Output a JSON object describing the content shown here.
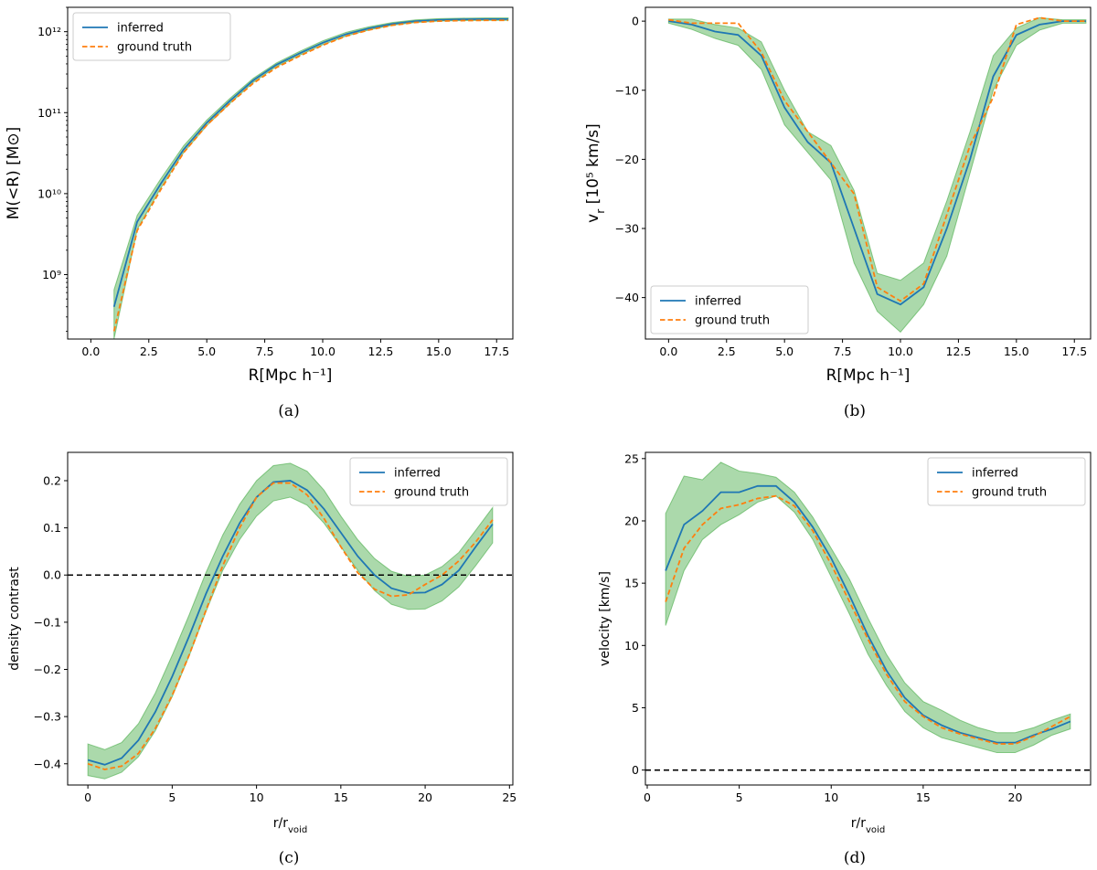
{
  "colors": {
    "inferred": "#1f77b4",
    "ground_truth": "#ff7f0e",
    "band": "#2ca02c"
  },
  "legend": {
    "inferred": "inferred",
    "ground_truth": "ground truth"
  },
  "chart_data": [
    {
      "id": "a",
      "caption": "(a)",
      "type": "line",
      "yscale": "log",
      "xlabel": "R[Mpc h⁻¹]",
      "ylabel": "M(<R) [M⊙]",
      "xlim": [
        -1,
        18.2
      ],
      "ylim": [
        160000000.0,
        2000000000000.0
      ],
      "xticks": [
        0,
        2.5,
        5,
        7.5,
        10,
        12.5,
        15,
        17.5
      ],
      "xtick_labels": [
        "0.0",
        "2.5",
        "5.0",
        "7.5",
        "10.0",
        "12.5",
        "15.0",
        "17.5"
      ],
      "yticks": [
        1000000000.0,
        10000000000.0,
        100000000000.0,
        1000000000000.0
      ],
      "ytick_labels": [
        "10⁹",
        "10¹⁰",
        "10¹¹",
        "10¹²"
      ],
      "legend_loc": "upper-left",
      "x": [
        1,
        2,
        3,
        4,
        5,
        6,
        7,
        8,
        9,
        10,
        11,
        12,
        13,
        14,
        15,
        16,
        17,
        18
      ],
      "series": [
        {
          "name": "inferred",
          "style": "solid",
          "values": [
            400000000.0,
            4500000000.0,
            13000000000.0,
            35000000000.0,
            75000000000.0,
            140000000000.0,
            250000000000.0,
            390000000000.0,
            540000000000.0,
            730000000000.0,
            930000000000.0,
            1100000000000.0,
            1250000000000.0,
            1350000000000.0,
            1400000000000.0,
            1420000000000.0,
            1430000000000.0,
            1430000000000.0
          ]
        },
        {
          "name": "ground truth",
          "style": "dashed",
          "values": [
            200000000.0,
            3500000000.0,
            11000000000.0,
            32000000000.0,
            70000000000.0,
            130000000000.0,
            230000000000.0,
            360000000000.0,
            500000000000.0,
            680000000000.0,
            880000000000.0,
            1050000000000.0,
            1200000000000.0,
            1300000000000.0,
            1350000000000.0,
            1370000000000.0,
            1380000000000.0,
            1380000000000.0
          ]
        }
      ],
      "band": {
        "lower": [
          160000000.0,
          3600000000.0,
          11500000000.0,
          32000000000.0,
          69000000000.0,
          130000000000.0,
          235000000000.0,
          370000000000.0,
          510000000000.0,
          690000000000.0,
          880000000000.0,
          1050000000000.0,
          1200000000000.0,
          1300000000000.0,
          1350000000000.0,
          1370000000000.0,
          1380000000000.0,
          1380000000000.0
        ],
        "upper": [
          650000000.0,
          5400000000.0,
          15000000000.0,
          39000000000.0,
          81000000000.0,
          150000000000.0,
          265000000000.0,
          410000000000.0,
          570000000000.0,
          770000000000.0,
          980000000000.0,
          1150000000000.0,
          1300000000000.0,
          1400000000000.0,
          1450000000000.0,
          1470000000000.0,
          1480000000000.0,
          1480000000000.0
        ]
      }
    },
    {
      "id": "b",
      "caption": "(b)",
      "type": "line",
      "yscale": "linear",
      "xlabel": "R[Mpc h⁻¹]",
      "ylabel": "v_r [10⁵ km/s]",
      "xlim": [
        -1,
        18.2
      ],
      "ylim": [
        -46,
        2
      ],
      "xticks": [
        0,
        2.5,
        5,
        7.5,
        10,
        12.5,
        15,
        17.5
      ],
      "xtick_labels": [
        "0.0",
        "2.5",
        "5.0",
        "7.5",
        "10.0",
        "12.5",
        "15.0",
        "17.5"
      ],
      "yticks": [
        0,
        -10,
        -20,
        -30,
        -40
      ],
      "ytick_labels": [
        "0",
        "−10",
        "−20",
        "−30",
        "−40"
      ],
      "legend_loc": "lower-left",
      "x": [
        0,
        1,
        2,
        3,
        4,
        5,
        6,
        7,
        8,
        9,
        10,
        11,
        12,
        13,
        14,
        15,
        16,
        17,
        18
      ],
      "series": [
        {
          "name": "inferred",
          "style": "solid",
          "values": [
            0,
            -0.5,
            -1.5,
            -2,
            -5,
            -12.5,
            -17.5,
            -20.5,
            -30,
            -39.5,
            -41,
            -38.5,
            -30,
            -20,
            -8,
            -2,
            -0.5,
            0,
            0
          ]
        },
        {
          "name": "ground truth",
          "style": "dashed",
          "values": [
            0.2,
            -0.3,
            -0.3,
            -0.3,
            -4.5,
            -11.5,
            -16,
            -20.5,
            -25,
            -38.5,
            -40.5,
            -38,
            -28,
            -18,
            -11,
            -0.5,
            0.5,
            0,
            0
          ]
        }
      ],
      "band": {
        "lower": [
          -0.3,
          -1.2,
          -2.5,
          -3.5,
          -7,
          -15,
          -19,
          -23,
          -35,
          -42,
          -45,
          -41,
          -34,
          -22,
          -10,
          -3.5,
          -1.3,
          -0.3,
          -0.3
        ],
        "upper": [
          0.3,
          0.3,
          -0.5,
          -1,
          -3,
          -10,
          -16,
          -18,
          -24.5,
          -36.5,
          -37.5,
          -35,
          -26,
          -16,
          -5,
          -1,
          0.5,
          0.2,
          0.2
        ]
      }
    },
    {
      "id": "c",
      "caption": "(c)",
      "type": "line",
      "yscale": "linear",
      "xlabel": "r/r_void",
      "ylabel": "density contrast",
      "xlim": [
        -1.2,
        25.2
      ],
      "ylim": [
        -0.445,
        0.26
      ],
      "xticks": [
        0,
        5,
        10,
        15,
        20,
        25
      ],
      "xtick_labels": [
        "0",
        "5",
        "10",
        "15",
        "20",
        "25"
      ],
      "yticks": [
        0.2,
        0.1,
        0.0,
        -0.1,
        -0.2,
        -0.3,
        -0.4
      ],
      "ytick_labels": [
        "0.2",
        "0.1",
        "0.0",
        "−0.1",
        "−0.2",
        "−0.3",
        "−0.4"
      ],
      "legend_loc": "upper-right",
      "hline": 0,
      "x": [
        0,
        1,
        2,
        3,
        4,
        5,
        6,
        7,
        8,
        9,
        10,
        11,
        12,
        13,
        14,
        15,
        16,
        17,
        18,
        19,
        20,
        21,
        22,
        23,
        24
      ],
      "series": [
        {
          "name": "inferred",
          "style": "solid",
          "values": [
            -0.392,
            -0.402,
            -0.388,
            -0.35,
            -0.29,
            -0.215,
            -0.13,
            -0.04,
            0.04,
            0.11,
            0.165,
            0.197,
            0.2,
            0.18,
            0.14,
            0.09,
            0.04,
            0.0,
            -0.028,
            -0.038,
            -0.037,
            -0.02,
            0.01,
            0.06,
            0.108
          ]
        },
        {
          "name": "ground truth",
          "style": "dashed",
          "values": [
            -0.4,
            -0.412,
            -0.405,
            -0.378,
            -0.325,
            -0.255,
            -0.17,
            -0.075,
            0.02,
            0.1,
            0.165,
            0.195,
            0.195,
            0.17,
            0.12,
            0.06,
            0.005,
            -0.03,
            -0.045,
            -0.042,
            -0.02,
            0.0,
            0.03,
            0.07,
            0.117
          ]
        }
      ],
      "band": {
        "lower": [
          -0.425,
          -0.432,
          -0.418,
          -0.385,
          -0.33,
          -0.258,
          -0.172,
          -0.078,
          0.01,
          0.075,
          0.125,
          0.157,
          0.165,
          0.148,
          0.11,
          0.06,
          0.01,
          -0.033,
          -0.062,
          -0.073,
          -0.072,
          -0.055,
          -0.025,
          0.02,
          0.068
        ],
        "upper": [
          -0.358,
          -0.37,
          -0.355,
          -0.315,
          -0.25,
          -0.17,
          -0.085,
          0.005,
          0.085,
          0.15,
          0.2,
          0.232,
          0.237,
          0.22,
          0.18,
          0.125,
          0.075,
          0.035,
          0.008,
          -0.003,
          0.0,
          0.018,
          0.048,
          0.095,
          0.143
        ]
      }
    },
    {
      "id": "d",
      "caption": "(d)",
      "type": "line",
      "yscale": "linear",
      "xlabel": "r/r_void",
      "ylabel": "velocity [km/s]",
      "xlim": [
        -0.1,
        24.1
      ],
      "ylim": [
        -1.2,
        25.5
      ],
      "xticks": [
        0,
        5,
        10,
        15,
        20
      ],
      "xtick_labels": [
        "0",
        "5",
        "10",
        "15",
        "20"
      ],
      "yticks": [
        25,
        20,
        15,
        10,
        5,
        0
      ],
      "ytick_labels": [
        "25",
        "20",
        "15",
        "10",
        "5",
        "0"
      ],
      "legend_loc": "upper-right",
      "hline": 0,
      "x": [
        1,
        2,
        3,
        4,
        5,
        6,
        7,
        8,
        9,
        10,
        11,
        12,
        13,
        14,
        15,
        16,
        17,
        18,
        19,
        20,
        21,
        22,
        23
      ],
      "series": [
        {
          "name": "inferred",
          "style": "solid",
          "values": [
            16,
            19.7,
            20.8,
            22.3,
            22.3,
            22.8,
            22.8,
            21.5,
            19.5,
            17,
            14,
            10.8,
            8,
            5.8,
            4.4,
            3.6,
            3.0,
            2.6,
            2.2,
            2.2,
            2.8,
            3.3,
            3.9
          ]
        },
        {
          "name": "ground truth",
          "style": "dashed",
          "values": [
            13.5,
            17.8,
            19.7,
            21.0,
            21.3,
            21.8,
            22.0,
            21.2,
            19.2,
            16.5,
            13.5,
            10.5,
            7.7,
            5.5,
            4.3,
            3.4,
            2.9,
            2.5,
            2.1,
            2.1,
            2.7,
            3.5,
            4.3
          ]
        }
      ],
      "band": {
        "lower": [
          11.6,
          16,
          18.5,
          19.7,
          20.5,
          21.5,
          22,
          20.7,
          18.5,
          15.5,
          12.5,
          9.3,
          6.8,
          4.7,
          3.4,
          2.6,
          2.2,
          1.8,
          1.4,
          1.4,
          2.0,
          2.8,
          3.3
        ],
        "upper": [
          20.6,
          23.6,
          23.3,
          24.7,
          24.0,
          23.8,
          23.5,
          22.3,
          20.3,
          17.8,
          15.3,
          12.2,
          9.3,
          7.0,
          5.5,
          4.8,
          4.0,
          3.4,
          3.0,
          3.0,
          3.4,
          4.0,
          4.5
        ]
      }
    }
  ]
}
